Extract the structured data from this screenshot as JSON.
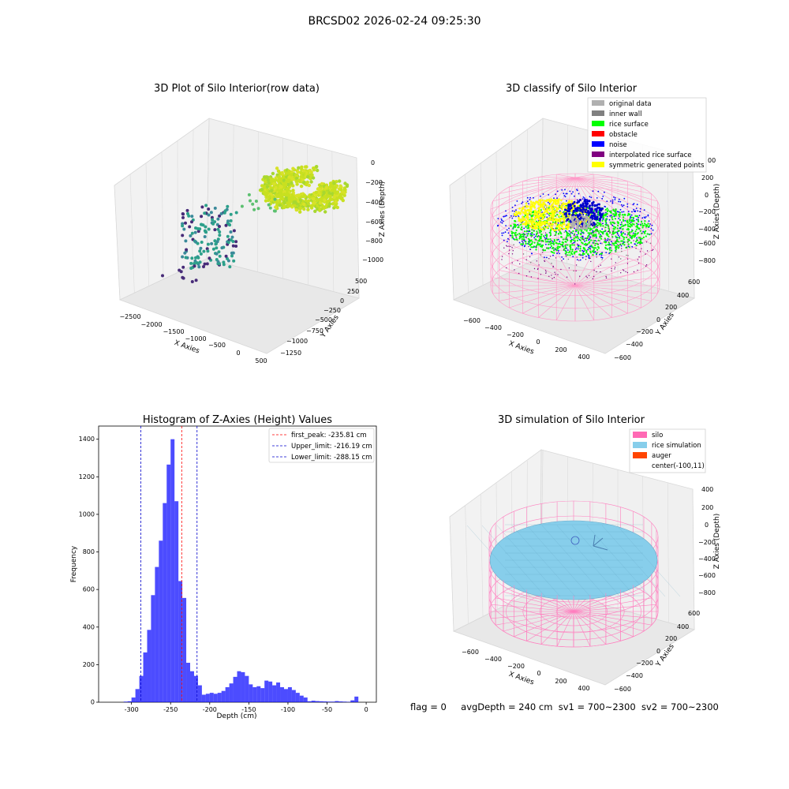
{
  "suptitle": "BRCSD02 2026-02-24 09:25:30",
  "info_line": {
    "flag": "flag = 0",
    "avg_depth": "avgDepth = 240 cm",
    "sv1": "sv1 = 700~2300",
    "sv2": "sv2 = 700~2300"
  },
  "chart_data": [
    {
      "type": "scatter",
      "title": "3D Plot of Silo Interior(row data)",
      "xlabel": "X Axies",
      "ylabel": "Y Axies",
      "zlabel": "Z Axies (Depth)",
      "x_ticks": [
        "−2500",
        "−2000",
        "−1500",
        "−1000",
        "−500",
        "0",
        "500"
      ],
      "y_ticks": [
        "500",
        "250",
        "0",
        "−250",
        "−500",
        "−750",
        "−1000",
        "−1250"
      ],
      "z_ticks": [
        "0",
        "−200",
        "−400",
        "−600",
        "−800",
        "−1000"
      ],
      "colors": {
        "high": "#c8e020",
        "mid": "#2ca08a",
        "low": "#472b78"
      }
    },
    {
      "type": "scatter",
      "title": "3D classify of Silo Interior",
      "xlabel": "X Axies",
      "ylabel": "Y Axies",
      "zlabel": "Z Axies (Depth)",
      "x_ticks": [
        "−600",
        "−400",
        "−200",
        "0",
        "200",
        "400"
      ],
      "y_ticks": [
        "600",
        "400",
        "200",
        "0",
        "−200",
        "−400",
        "−600"
      ],
      "z_ticks": [
        "200",
        "0",
        "−200",
        "−400",
        "−600",
        "−800"
      ],
      "z_partial_tick": "00",
      "legend": [
        {
          "label": "original data",
          "color": "#b0b0b0"
        },
        {
          "label": "inner wall",
          "color": "#808080"
        },
        {
          "label": "rice surface",
          "color": "#00ff00"
        },
        {
          "label": "obstacle",
          "color": "#ff0000"
        },
        {
          "label": "noise",
          "color": "#0000ff"
        },
        {
          "label": "interpolated rice surface",
          "color": "#800080"
        },
        {
          "label": "symmetric generated points",
          "color": "#ffff00"
        }
      ]
    },
    {
      "type": "bar",
      "title": "Histogram of Z-Axies (Height) Values",
      "xlabel": "Depth (cm)",
      "ylabel": "Frequency",
      "xlim": [
        -342,
        13
      ],
      "ylim": [
        0,
        1470
      ],
      "x_ticks": [
        -300,
        -250,
        -200,
        -150,
        -100,
        -50,
        0
      ],
      "y_ticks": [
        0,
        200,
        400,
        600,
        800,
        1000,
        1200,
        1400
      ],
      "bin_width": 5,
      "bin_starts": [
        -310,
        -305,
        -300,
        -295,
        -290,
        -285,
        -280,
        -275,
        -270,
        -265,
        -260,
        -255,
        -250,
        -245,
        -240,
        -235,
        -230,
        -225,
        -220,
        -215,
        -210,
        -205,
        -200,
        -195,
        -190,
        -185,
        -180,
        -175,
        -170,
        -165,
        -160,
        -155,
        -150,
        -145,
        -140,
        -135,
        -130,
        -125,
        -120,
        -115,
        -110,
        -105,
        -100,
        -95,
        -90,
        -85,
        -80,
        -75,
        -70,
        -65,
        -60,
        -55,
        -50,
        -45,
        -40,
        -35,
        -30,
        -25,
        -20,
        -15,
        -10,
        -5,
        0
      ],
      "values": [
        3,
        5,
        25,
        70,
        140,
        265,
        385,
        570,
        720,
        860,
        1060,
        1265,
        1400,
        1070,
        645,
        555,
        210,
        165,
        140,
        90,
        40,
        45,
        50,
        45,
        50,
        60,
        80,
        100,
        135,
        165,
        160,
        140,
        95,
        80,
        85,
        75,
        115,
        110,
        90,
        105,
        80,
        70,
        80,
        65,
        50,
        35,
        25,
        5,
        8,
        6,
        5,
        4,
        3,
        3,
        6,
        4,
        3,
        2,
        10,
        30,
        0,
        0,
        0
      ],
      "bar_color": "#0000ff",
      "bar_alpha": 0.7,
      "reference_lines": [
        {
          "label": "first_peak: -235.81 cm",
          "value": -235.81,
          "color": "#ff0000"
        },
        {
          "label": "Upper_limit: -216.19 cm",
          "value": -216.19,
          "color": "#0000cc"
        },
        {
          "label": "Lower_limit: -288.15 cm",
          "value": -288.15,
          "color": "#0000cc"
        }
      ],
      "legend_position": "upper right"
    },
    {
      "type": "scatter",
      "title": "3D simulation of Silo Interior",
      "xlabel": "X Axies",
      "ylabel": "Y Axies",
      "zlabel": "Z Axies (Depth)",
      "x_ticks": [
        "−600",
        "−400",
        "−200",
        "0",
        "200",
        "400"
      ],
      "y_ticks": [
        "600",
        "400",
        "200",
        "0",
        "−200",
        "−400",
        "−600"
      ],
      "z_ticks": [
        "400",
        "200",
        "0",
        "−200",
        "−400",
        "−600",
        "−800"
      ],
      "legend": [
        {
          "label": "silo",
          "color": "#ff69b4"
        },
        {
          "label": "rice simulation",
          "color": "#87ceeb"
        },
        {
          "label": "auger",
          "color": "#ff4500"
        },
        {
          "label": "center(-100,11)",
          "color": ""
        }
      ]
    }
  ]
}
